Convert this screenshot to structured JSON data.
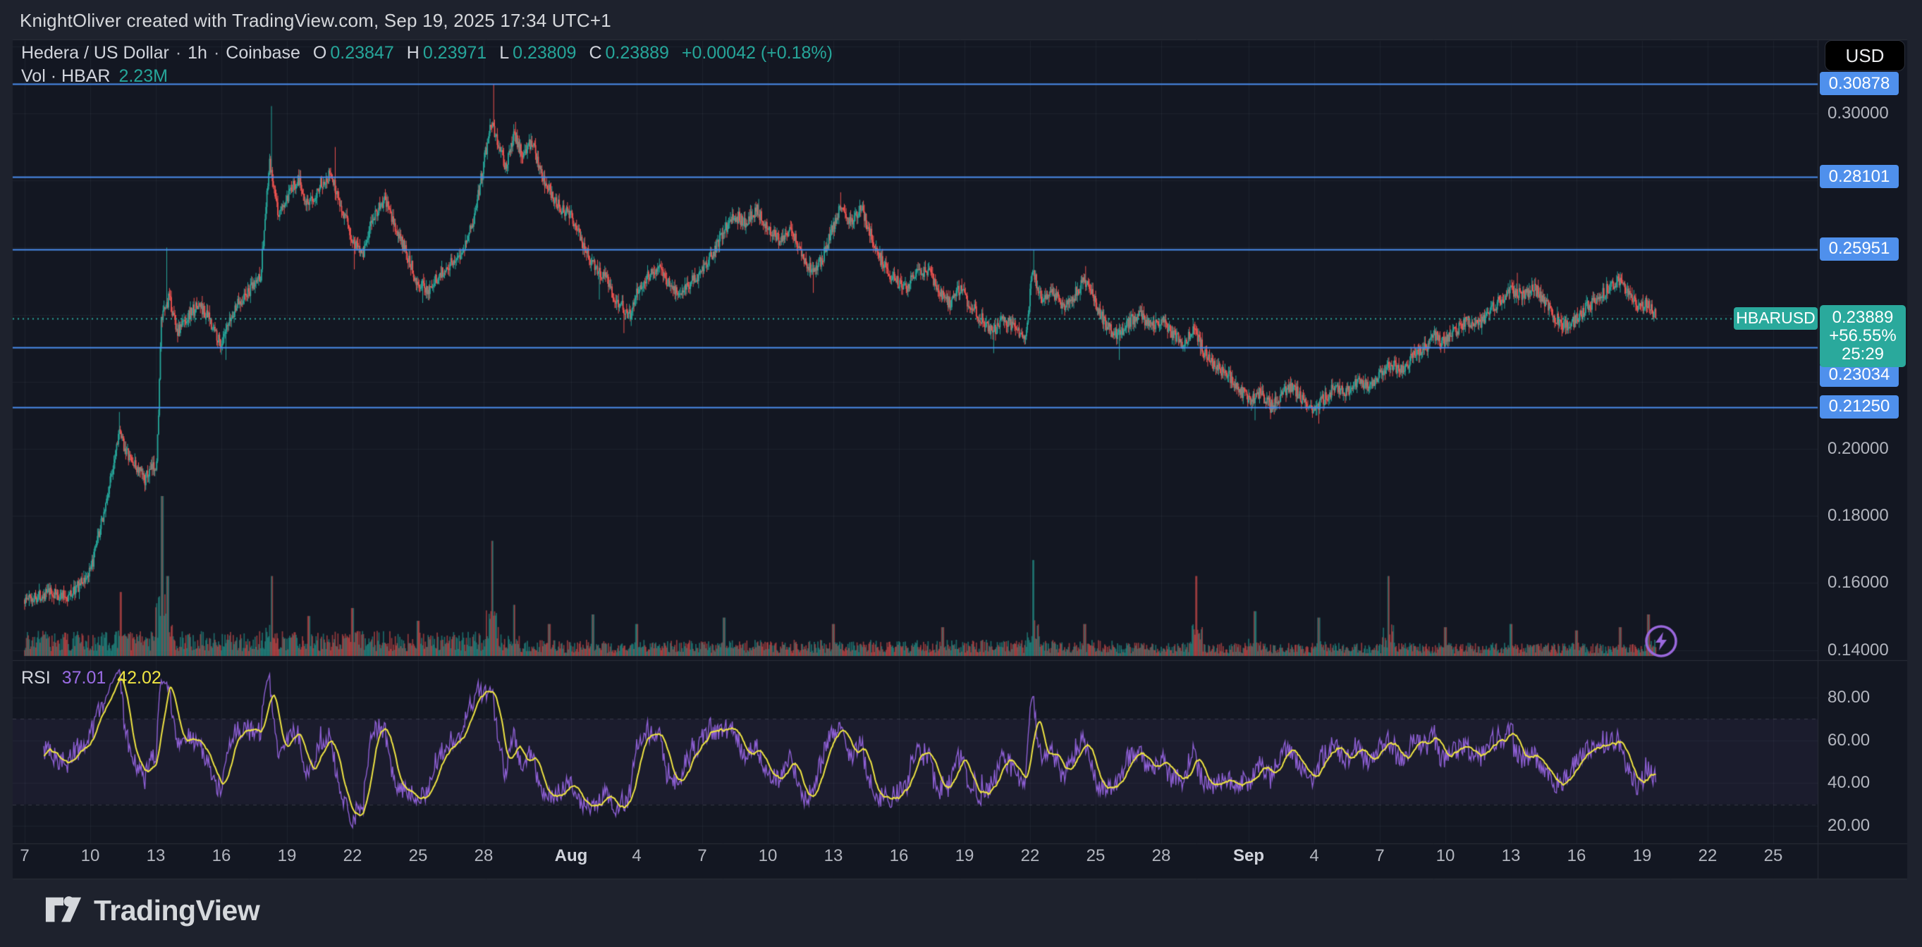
{
  "header": {
    "attribution": "KnightOliver created with TradingView.com, Sep 19, 2025 17:34 UTC+1"
  },
  "legend": {
    "symbol": "Hedera / US Dollar",
    "sep": "·",
    "interval": "1h",
    "exchange": "Coinbase",
    "o_label": "O",
    "o_value": "0.23847",
    "h_label": "H",
    "h_value": "0.23971",
    "l_label": "L",
    "l_value": "0.23809",
    "c_label": "C",
    "c_value": "0.23889",
    "change": "+0.00042 (+0.18%)",
    "vol_label": "Vol · HBAR",
    "vol_value": "2.23M"
  },
  "rsi_legend": {
    "label": "RSI",
    "value": "37.01",
    "ma_value": "42.02"
  },
  "price_scale": {
    "currency": "USD"
  },
  "footer": {
    "logo_text": "TradingView"
  },
  "colors": {
    "bg": "#131722",
    "frame": "#1e222d",
    "border": "#2a2e39",
    "grid": "rgba(170,178,200,0.07)",
    "up": "#26a69a",
    "down": "#ef5350",
    "up_vol": "rgba(38,166,154,0.55)",
    "down_vol": "rgba(239,83,80,0.55)",
    "level_line": "#4a8df0",
    "badge_blue": "#4f90ec",
    "current_teal": "#2aa99c",
    "rsi_line": "#8d5fd3",
    "rsi_ma": "#f0e543",
    "rsi_band_fill": "rgba(136,98,204,0.07)",
    "rsi_band_line": "rgba(178,181,190,0.22)",
    "text": "#d1d4dc",
    "muted": "#b2b5be",
    "purple_icon": "#9a68dd"
  },
  "chart_data": {
    "type": "candlestick",
    "title": "Hedera / US Dollar · 1h · Coinbase",
    "symbol": "HBARUSD",
    "interval": "1h",
    "exchange": "Coinbase",
    "last": {
      "open": 0.23847,
      "high": 0.23971,
      "low": 0.23809,
      "close": 0.23889,
      "change": 0.00042,
      "change_pct": 0.18,
      "volume": "2.23M"
    },
    "ylim": [
      0.137,
      0.3216
    ],
    "grid": true,
    "price_ticks": [
      {
        "text": "0.30000",
        "p": 0.3
      },
      {
        "text": "0.20000",
        "p": 0.2
      },
      {
        "text": "0.18000",
        "p": 0.18
      },
      {
        "text": "0.16000",
        "p": 0.16
      },
      {
        "text": "0.14000",
        "p": 0.14
      }
    ],
    "level_lines": [
      {
        "text": "0.30878",
        "p": 0.30878
      },
      {
        "text": "0.28101",
        "p": 0.28101
      },
      {
        "text": "0.25951",
        "p": 0.25951
      },
      {
        "text": "0.23034",
        "p": 0.23034
      },
      {
        "text": "0.21250",
        "p": 0.2125
      }
    ],
    "current": {
      "p": 0.23889,
      "price_text": "0.23889",
      "change_pct_text": "+56.55%",
      "countdown_text": "25:29",
      "tag_text": "HBARUSD"
    },
    "time_ticks": [
      {
        "label": "7",
        "d": 0
      },
      {
        "label": "10",
        "d": 3
      },
      {
        "label": "13",
        "d": 6
      },
      {
        "label": "16",
        "d": 9
      },
      {
        "label": "19",
        "d": 12
      },
      {
        "label": "22",
        "d": 15
      },
      {
        "label": "25",
        "d": 18
      },
      {
        "label": "28",
        "d": 21
      },
      {
        "label": "Aug",
        "d": 25,
        "bold": true
      },
      {
        "label": "4",
        "d": 28
      },
      {
        "label": "7",
        "d": 31
      },
      {
        "label": "10",
        "d": 34
      },
      {
        "label": "13",
        "d": 37
      },
      {
        "label": "16",
        "d": 40
      },
      {
        "label": "19",
        "d": 43
      },
      {
        "label": "22",
        "d": 46
      },
      {
        "label": "25",
        "d": 49
      },
      {
        "label": "28",
        "d": 52
      },
      {
        "label": "Sep",
        "d": 56,
        "bold": true
      },
      {
        "label": "4",
        "d": 59
      },
      {
        "label": "7",
        "d": 62
      },
      {
        "label": "10",
        "d": 65
      },
      {
        "label": "13",
        "d": 68
      },
      {
        "label": "16",
        "d": 71
      },
      {
        "label": "19",
        "d": 74
      },
      {
        "label": "22",
        "d": 77
      },
      {
        "label": "25",
        "d": 80
      }
    ],
    "rsi": {
      "period": 14,
      "ticks": [
        {
          "text": "80.00",
          "v": 80
        },
        {
          "text": "60.00",
          "v": 60
        },
        {
          "text": "40.00",
          "v": 40
        },
        {
          "text": "20.00",
          "v": 20
        }
      ],
      "band": [
        70,
        30
      ],
      "last_value": 37.01,
      "last_ma": 42.02
    },
    "price_anchors": [
      [
        0,
        0.155
      ],
      [
        1,
        0.157
      ],
      [
        2,
        0.156
      ],
      [
        3,
        0.163
      ],
      [
        3.8,
        0.186
      ],
      [
        4.3,
        0.205
      ],
      [
        4.8,
        0.197
      ],
      [
        5.5,
        0.191
      ],
      [
        6.05,
        0.196
      ],
      [
        6.25,
        0.238
      ],
      [
        6.6,
        0.245
      ],
      [
        7,
        0.235
      ],
      [
        7.5,
        0.24
      ],
      [
        8,
        0.243
      ],
      [
        8.5,
        0.238
      ],
      [
        9,
        0.231
      ],
      [
        9.7,
        0.243
      ],
      [
        10.3,
        0.247
      ],
      [
        10.8,
        0.252
      ],
      [
        11.2,
        0.285
      ],
      [
        11.6,
        0.27
      ],
      [
        12,
        0.274
      ],
      [
        12.5,
        0.281
      ],
      [
        13,
        0.272
      ],
      [
        13.5,
        0.279
      ],
      [
        14,
        0.282
      ],
      [
        14.5,
        0.272
      ],
      [
        15,
        0.262
      ],
      [
        15.5,
        0.259
      ],
      [
        16,
        0.27
      ],
      [
        16.5,
        0.274
      ],
      [
        17,
        0.265
      ],
      [
        17.5,
        0.258
      ],
      [
        18,
        0.249
      ],
      [
        18.5,
        0.2475
      ],
      [
        19,
        0.252
      ],
      [
        19.5,
        0.2555
      ],
      [
        20,
        0.259
      ],
      [
        20.5,
        0.267
      ],
      [
        21,
        0.285
      ],
      [
        21.35,
        0.298
      ],
      [
        21.7,
        0.29
      ],
      [
        22,
        0.284
      ],
      [
        22.4,
        0.294
      ],
      [
        22.8,
        0.287
      ],
      [
        23.2,
        0.292
      ],
      [
        23.6,
        0.282
      ],
      [
        24,
        0.277
      ],
      [
        24.5,
        0.272
      ],
      [
        25,
        0.27
      ],
      [
        25.5,
        0.262
      ],
      [
        26,
        0.255
      ],
      [
        26.6,
        0.251
      ],
      [
        27,
        0.245
      ],
      [
        27.7,
        0.24
      ],
      [
        28,
        0.247
      ],
      [
        28.5,
        0.2515
      ],
      [
        29,
        0.2545
      ],
      [
        29.5,
        0.249
      ],
      [
        30,
        0.2455
      ],
      [
        30.5,
        0.2495
      ],
      [
        31,
        0.2535
      ],
      [
        31.5,
        0.258
      ],
      [
        32,
        0.2655
      ],
      [
        32.5,
        0.2695
      ],
      [
        33,
        0.2675
      ],
      [
        33.5,
        0.271
      ],
      [
        34,
        0.2665
      ],
      [
        34.5,
        0.2625
      ],
      [
        35,
        0.2655
      ],
      [
        35.5,
        0.259
      ],
      [
        36,
        0.2525
      ],
      [
        36.5,
        0.2565
      ],
      [
        37,
        0.2665
      ],
      [
        37.3,
        0.2725
      ],
      [
        37.8,
        0.268
      ],
      [
        38.3,
        0.2715
      ],
      [
        38.8,
        0.2625
      ],
      [
        39.3,
        0.2545
      ],
      [
        39.8,
        0.2505
      ],
      [
        40.3,
        0.2475
      ],
      [
        40.8,
        0.2525
      ],
      [
        41.3,
        0.2535
      ],
      [
        41.8,
        0.2475
      ],
      [
        42.3,
        0.2435
      ],
      [
        42.8,
        0.2475
      ],
      [
        43.3,
        0.2425
      ],
      [
        43.8,
        0.2385
      ],
      [
        44.3,
        0.2345
      ],
      [
        44.8,
        0.2385
      ],
      [
        45.3,
        0.2365
      ],
      [
        45.8,
        0.2325
      ],
      [
        46.1,
        0.2545
      ],
      [
        46.5,
        0.2445
      ],
      [
        47,
        0.2475
      ],
      [
        47.5,
        0.2425
      ],
      [
        48,
        0.2455
      ],
      [
        48.5,
        0.2505
      ],
      [
        49,
        0.2435
      ],
      [
        49.5,
        0.2365
      ],
      [
        50,
        0.2335
      ],
      [
        50.5,
        0.2375
      ],
      [
        51,
        0.2405
      ],
      [
        51.5,
        0.2365
      ],
      [
        52,
        0.2385
      ],
      [
        52.5,
        0.2345
      ],
      [
        53,
        0.2315
      ],
      [
        53.5,
        0.2355
      ],
      [
        54,
        0.2285
      ],
      [
        54.5,
        0.2245
      ],
      [
        55,
        0.2225
      ],
      [
        55.5,
        0.2185
      ],
      [
        56,
        0.2145
      ],
      [
        56.6,
        0.2165
      ],
      [
        57,
        0.2125
      ],
      [
        57.5,
        0.2165
      ],
      [
        58,
        0.2185
      ],
      [
        58.5,
        0.2145
      ],
      [
        59,
        0.2115
      ],
      [
        59.5,
        0.2155
      ],
      [
        60,
        0.2185
      ],
      [
        60.5,
        0.2165
      ],
      [
        61,
        0.2205
      ],
      [
        61.5,
        0.2185
      ],
      [
        62,
        0.2225
      ],
      [
        62.5,
        0.2255
      ],
      [
        63,
        0.2235
      ],
      [
        63.5,
        0.2275
      ],
      [
        64,
        0.2295
      ],
      [
        64.5,
        0.2335
      ],
      [
        65,
        0.2315
      ],
      [
        65.5,
        0.2355
      ],
      [
        66,
        0.2385
      ],
      [
        66.5,
        0.2365
      ],
      [
        67,
        0.2405
      ],
      [
        67.5,
        0.2445
      ],
      [
        68,
        0.2475
      ],
      [
        68.6,
        0.2455
      ],
      [
        69,
        0.2485
      ],
      [
        69.5,
        0.2445
      ],
      [
        70,
        0.2395
      ],
      [
        70.5,
        0.2365
      ],
      [
        71,
        0.2385
      ],
      [
        71.5,
        0.2425
      ],
      [
        72,
        0.2445
      ],
      [
        72.5,
        0.2485
      ],
      [
        73,
        0.2505
      ],
      [
        73.4,
        0.2465
      ],
      [
        73.8,
        0.2415
      ],
      [
        74.2,
        0.2435
      ],
      [
        74.7,
        0.23889
      ]
    ],
    "wick_spikes": [
      {
        "d": 4.35,
        "type": "high",
        "p": 0.211
      },
      {
        "d": 6.5,
        "type": "high",
        "p": 0.26
      },
      {
        "d": 9.2,
        "type": "low",
        "p": 0.2265
      },
      {
        "d": 11.3,
        "type": "high",
        "p": 0.3022
      },
      {
        "d": 14.2,
        "type": "high",
        "p": 0.29
      },
      {
        "d": 15.1,
        "type": "low",
        "p": 0.2535
      },
      {
        "d": 18.2,
        "type": "low",
        "p": 0.2435
      },
      {
        "d": 21.45,
        "type": "high",
        "p": 0.30878
      },
      {
        "d": 22.45,
        "type": "high",
        "p": 0.2975
      },
      {
        "d": 26.3,
        "type": "low",
        "p": 0.2445
      },
      {
        "d": 27.4,
        "type": "low",
        "p": 0.2345
      },
      {
        "d": 33.6,
        "type": "high",
        "p": 0.2745
      },
      {
        "d": 36.1,
        "type": "low",
        "p": 0.2465
      },
      {
        "d": 37.35,
        "type": "high",
        "p": 0.2765
      },
      {
        "d": 44.35,
        "type": "low",
        "p": 0.2285
      },
      {
        "d": 46.15,
        "type": "high",
        "p": 0.2595
      },
      {
        "d": 48.55,
        "type": "high",
        "p": 0.2545
      },
      {
        "d": 50.1,
        "type": "low",
        "p": 0.2265
      },
      {
        "d": 56.3,
        "type": "low",
        "p": 0.2085
      },
      {
        "d": 59.2,
        "type": "low",
        "p": 0.2075
      },
      {
        "d": 68.3,
        "type": "high",
        "p": 0.2525
      },
      {
        "d": 73.1,
        "type": "high",
        "p": 0.2525
      }
    ],
    "volume_spikes": [
      [
        4.4,
        0.4
      ],
      [
        6.3,
        1.0
      ],
      [
        6.55,
        0.5
      ],
      [
        11.3,
        0.5
      ],
      [
        13.0,
        0.25
      ],
      [
        15.0,
        0.3
      ],
      [
        18.0,
        0.22
      ],
      [
        21.4,
        0.72
      ],
      [
        22.4,
        0.32
      ],
      [
        24.0,
        0.2
      ],
      [
        26.0,
        0.26
      ],
      [
        28.0,
        0.2
      ],
      [
        32.0,
        0.24
      ],
      [
        37.0,
        0.2
      ],
      [
        42.0,
        0.18
      ],
      [
        46.15,
        0.6
      ],
      [
        48.5,
        0.2
      ],
      [
        53.6,
        0.5
      ],
      [
        56.3,
        0.28
      ],
      [
        59.2,
        0.24
      ],
      [
        62.4,
        0.5
      ],
      [
        65.0,
        0.18
      ],
      [
        68.0,
        0.2
      ],
      [
        71.0,
        0.16
      ],
      [
        73.0,
        0.18
      ],
      [
        74.3,
        0.26
      ]
    ]
  }
}
